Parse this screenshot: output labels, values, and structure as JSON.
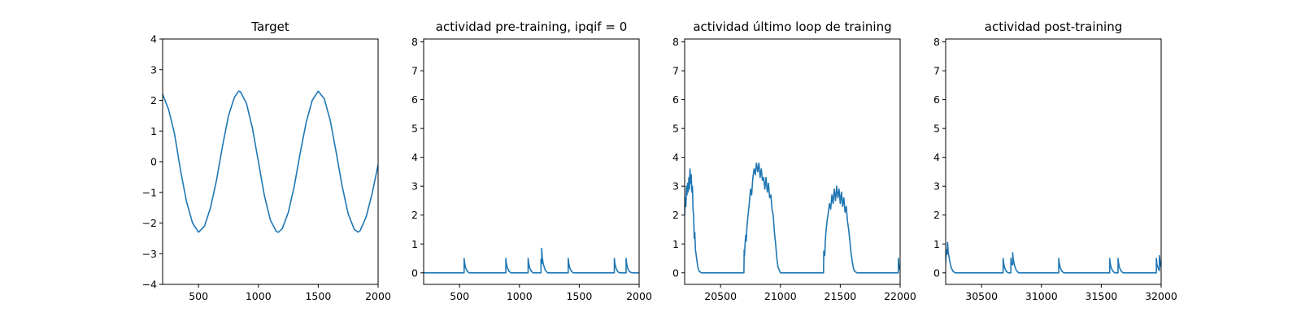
{
  "colors": {
    "series": "#1f77b4",
    "axes": "#000000",
    "background": "#ffffff"
  },
  "chart_data": [
    {
      "type": "line",
      "title": "Target",
      "xlabel": "",
      "ylabel": "",
      "xlim": [
        200,
        2000
      ],
      "ylim": [
        -4,
        4
      ],
      "xticks": [
        500,
        1000,
        1500,
        2000
      ],
      "yticks": [
        -4,
        -3,
        -2,
        -1,
        0,
        1,
        2,
        3,
        4
      ],
      "xtick_labels": [
        "500",
        "1000",
        "1500",
        "2000"
      ],
      "ytick_labels": [
        "−4",
        "−3",
        "−2",
        "−1",
        "0",
        "1",
        "2",
        "3",
        "4"
      ],
      "series": [
        {
          "name": "target",
          "x": [
            200,
            250,
            300,
            350,
            400,
            450,
            500,
            550,
            600,
            650,
            700,
            750,
            800,
            835,
            850,
            900,
            950,
            1000,
            1050,
            1100,
            1150,
            1167,
            1200,
            1250,
            1300,
            1350,
            1400,
            1450,
            1500,
            1550,
            1600,
            1650,
            1700,
            1750,
            1800,
            1833,
            1850,
            1900,
            1950,
            2000
          ],
          "values": [
            2.2,
            1.7,
            0.9,
            -0.3,
            -1.3,
            -2.0,
            -2.3,
            -2.1,
            -1.5,
            -0.6,
            0.5,
            1.5,
            2.1,
            2.3,
            2.28,
            1.9,
            1.1,
            0.0,
            -1.1,
            -1.9,
            -2.28,
            -2.3,
            -2.18,
            -1.65,
            -0.8,
            0.3,
            1.3,
            2.0,
            2.3,
            2.05,
            1.35,
            0.3,
            -0.8,
            -1.7,
            -2.2,
            -2.3,
            -2.25,
            -1.8,
            -1.05,
            -0.1
          ]
        }
      ]
    },
    {
      "type": "line",
      "title": "actividad pre-training, ipqif = 0",
      "xlabel": "",
      "ylabel": "",
      "xlim": [
        200,
        2000
      ],
      "ylim": [
        -0.4,
        8.1
      ],
      "xticks": [
        500,
        1000,
        1500,
        2000
      ],
      "yticks": [
        0,
        1,
        2,
        3,
        4,
        5,
        6,
        7,
        8
      ],
      "xtick_labels": [
        "500",
        "1000",
        "1500",
        "2000"
      ],
      "ytick_labels": [
        "0",
        "1",
        "2",
        "3",
        "4",
        "5",
        "6",
        "7",
        "8"
      ],
      "series": [
        {
          "name": "actividad",
          "x": [
            200,
            538,
            538,
            542,
            550,
            565,
            580,
            887,
            887,
            891,
            899,
            914,
            929,
            1073,
            1073,
            1077,
            1085,
            1100,
            1115,
            1180,
            1180,
            1186,
            1186,
            1190,
            1200,
            1215,
            1235,
            1408,
            1408,
            1412,
            1420,
            1435,
            1450,
            1793,
            1793,
            1797,
            1805,
            1820,
            1835,
            1891,
            1891,
            1895,
            1905,
            1920,
            1940,
            2000
          ],
          "values": [
            0,
            0,
            0.5,
            0.35,
            0.18,
            0.05,
            0,
            0,
            0.5,
            0.35,
            0.18,
            0.05,
            0,
            0,
            0.5,
            0.35,
            0.18,
            0.05,
            0,
            0,
            0.45,
            0.32,
            0.85,
            0.55,
            0.3,
            0.1,
            0,
            0,
            0.5,
            0.35,
            0.18,
            0.05,
            0,
            0,
            0.5,
            0.35,
            0.18,
            0.05,
            0,
            0,
            0.5,
            0.35,
            0.15,
            0.04,
            0,
            0
          ]
        }
      ]
    },
    {
      "type": "line",
      "title": "actividad último loop de training",
      "xlabel": "",
      "ylabel": "",
      "xlim": [
        20200,
        22000
      ],
      "ylim": [
        -0.4,
        8.1
      ],
      "xticks": [
        20500,
        21000,
        21500,
        22000
      ],
      "yticks": [
        0,
        1,
        2,
        3,
        4,
        5,
        6,
        7,
        8
      ],
      "xtick_labels": [
        "20500",
        "21000",
        "21500",
        "22000"
      ],
      "ytick_labels": [
        "0",
        "1",
        "2",
        "3",
        "4",
        "5",
        "6",
        "7",
        "8"
      ],
      "series": [
        {
          "name": "actividad",
          "x": [
            20200,
            20205,
            20210,
            20215,
            20220,
            20225,
            20230,
            20235,
            20240,
            20245,
            20250,
            20255,
            20260,
            20265,
            20270,
            20275,
            20280,
            20285,
            20290,
            20300,
            20310,
            20320,
            20340,
            20360,
            20400,
            20500,
            20695,
            20697,
            20700,
            20705,
            20710,
            20715,
            20720,
            20730,
            20740,
            20750,
            20760,
            20770,
            20780,
            20790,
            20800,
            20810,
            20820,
            20830,
            20840,
            20850,
            20860,
            20870,
            20880,
            20890,
            20900,
            20910,
            20920,
            20930,
            20940,
            20950,
            20960,
            20970,
            20980,
            21000,
            21100,
            21360,
            21362,
            21370,
            21375,
            21380,
            21390,
            21400,
            21410,
            21420,
            21430,
            21440,
            21450,
            21460,
            21470,
            21480,
            21490,
            21500,
            21510,
            21520,
            21530,
            21540,
            21550,
            21560,
            21570,
            21580,
            21590,
            21600,
            21610,
            21620,
            21640,
            21660,
            21700,
            21985,
            21985,
            21990,
            22000
          ],
          "values": [
            2.0,
            2.6,
            2.3,
            3.0,
            2.7,
            3.1,
            2.8,
            3.3,
            2.9,
            3.6,
            3.1,
            3.4,
            2.8,
            3.0,
            2.2,
            2.0,
            1.2,
            1.4,
            0.8,
            0.5,
            0.2,
            0.06,
            0,
            0,
            0,
            0,
            0,
            0.8,
            0.6,
            1.0,
            1.3,
            1.1,
            1.6,
            2.0,
            2.4,
            2.9,
            2.7,
            3.3,
            3.6,
            3.4,
            3.8,
            3.5,
            3.8,
            3.3,
            3.6,
            3.2,
            3.3,
            2.9,
            3.3,
            2.8,
            3.1,
            2.6,
            2.7,
            2.2,
            2.0,
            1.4,
            1.0,
            0.5,
            0.2,
            0,
            0,
            0,
            0.75,
            0.6,
            1.1,
            1.4,
            1.8,
            2.1,
            2.4,
            2.2,
            2.7,
            2.4,
            2.9,
            2.5,
            3.0,
            2.6,
            2.9,
            2.4,
            2.8,
            2.3,
            2.6,
            2.1,
            2.3,
            1.8,
            1.5,
            1.1,
            0.7,
            0.4,
            0.15,
            0.05,
            0,
            0,
            0,
            0,
            0.5,
            0.25,
            0.1
          ]
        }
      ]
    },
    {
      "type": "line",
      "title": "actividad post-training",
      "xlabel": "",
      "ylabel": "",
      "xlim": [
        30200,
        32000
      ],
      "ylim": [
        -0.4,
        8.1
      ],
      "xticks": [
        30500,
        31000,
        31500,
        32000
      ],
      "yticks": [
        0,
        1,
        2,
        3,
        4,
        5,
        6,
        7,
        8
      ],
      "xtick_labels": [
        "30500",
        "31000",
        "31500",
        "32000"
      ],
      "ytick_labels": [
        "0",
        "1",
        "2",
        "3",
        "4",
        "5",
        "6",
        "7",
        "8"
      ],
      "series": [
        {
          "name": "actividad",
          "x": [
            30200,
            30203,
            30208,
            30212,
            30216,
            30222,
            30232,
            30245,
            30260,
            30280,
            30680,
            30680,
            30684,
            30692,
            30707,
            30722,
            30745,
            30745,
            30749,
            30760,
            30760,
            30764,
            30775,
            30790,
            30810,
            31145,
            31145,
            31149,
            31157,
            31172,
            31187,
            31570,
            31570,
            31574,
            31582,
            31597,
            31612,
            31640,
            31640,
            31644,
            31652,
            31667,
            31682,
            31960,
            31960,
            31965,
            31980,
            31985,
            31985,
            31992,
            32000
          ],
          "values": [
            0.35,
            0.6,
            0.8,
            0.65,
            1.05,
            0.7,
            0.45,
            0.2,
            0.06,
            0,
            0,
            0.5,
            0.35,
            0.18,
            0.05,
            0,
            0,
            0.5,
            0.3,
            0.28,
            0.7,
            0.5,
            0.25,
            0.08,
            0,
            0,
            0.5,
            0.35,
            0.18,
            0.05,
            0,
            0,
            0.5,
            0.35,
            0.18,
            0.05,
            0,
            0,
            0.5,
            0.35,
            0.18,
            0.05,
            0,
            0,
            0.5,
            0.3,
            0.1,
            0.08,
            0.6,
            0.35,
            0.2
          ]
        }
      ]
    }
  ]
}
